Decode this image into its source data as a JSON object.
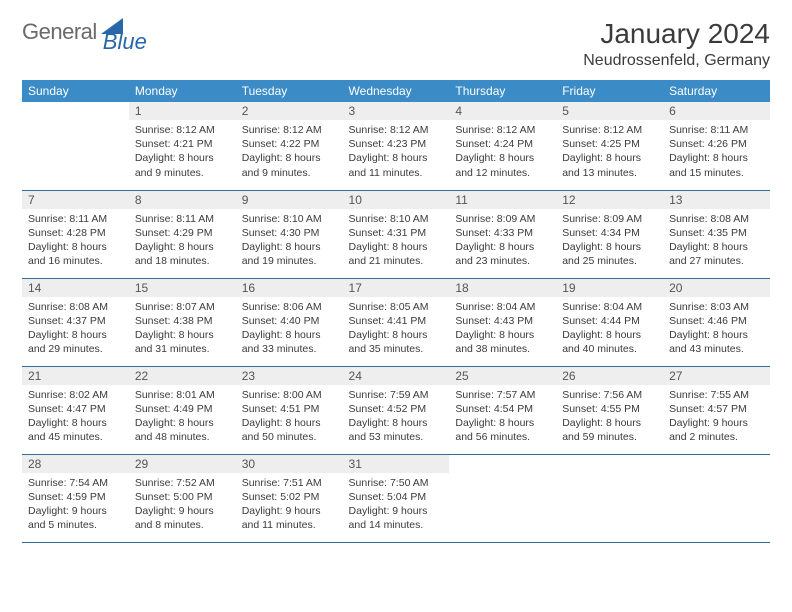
{
  "brand": {
    "word1": "General",
    "word2": "Blue"
  },
  "title": "January 2024",
  "location": "Neudrossenfeld, Germany",
  "colors": {
    "header_bg": "#3b8bc6",
    "header_text": "#ffffff",
    "row_divider": "#2f6fa0",
    "daynum_bg": "#eeeeee",
    "text": "#3b3b3b",
    "logo_gray": "#6a6a6a",
    "logo_blue": "#2868a8",
    "page_bg": "#ffffff"
  },
  "typography": {
    "title_fontsize": 28,
    "location_fontsize": 16,
    "header_fontsize": 12,
    "daynum_fontsize": 12,
    "body_fontsize": 10.5
  },
  "weekdays": [
    "Sunday",
    "Monday",
    "Tuesday",
    "Wednesday",
    "Thursday",
    "Friday",
    "Saturday"
  ],
  "weeks": [
    [
      null,
      {
        "n": "1",
        "sunrise": "8:12 AM",
        "sunset": "4:21 PM",
        "daylight": "8 hours and 9 minutes."
      },
      {
        "n": "2",
        "sunrise": "8:12 AM",
        "sunset": "4:22 PM",
        "daylight": "8 hours and 9 minutes."
      },
      {
        "n": "3",
        "sunrise": "8:12 AM",
        "sunset": "4:23 PM",
        "daylight": "8 hours and 11 minutes."
      },
      {
        "n": "4",
        "sunrise": "8:12 AM",
        "sunset": "4:24 PM",
        "daylight": "8 hours and 12 minutes."
      },
      {
        "n": "5",
        "sunrise": "8:12 AM",
        "sunset": "4:25 PM",
        "daylight": "8 hours and 13 minutes."
      },
      {
        "n": "6",
        "sunrise": "8:11 AM",
        "sunset": "4:26 PM",
        "daylight": "8 hours and 15 minutes."
      }
    ],
    [
      {
        "n": "7",
        "sunrise": "8:11 AM",
        "sunset": "4:28 PM",
        "daylight": "8 hours and 16 minutes."
      },
      {
        "n": "8",
        "sunrise": "8:11 AM",
        "sunset": "4:29 PM",
        "daylight": "8 hours and 18 minutes."
      },
      {
        "n": "9",
        "sunrise": "8:10 AM",
        "sunset": "4:30 PM",
        "daylight": "8 hours and 19 minutes."
      },
      {
        "n": "10",
        "sunrise": "8:10 AM",
        "sunset": "4:31 PM",
        "daylight": "8 hours and 21 minutes."
      },
      {
        "n": "11",
        "sunrise": "8:09 AM",
        "sunset": "4:33 PM",
        "daylight": "8 hours and 23 minutes."
      },
      {
        "n": "12",
        "sunrise": "8:09 AM",
        "sunset": "4:34 PM",
        "daylight": "8 hours and 25 minutes."
      },
      {
        "n": "13",
        "sunrise": "8:08 AM",
        "sunset": "4:35 PM",
        "daylight": "8 hours and 27 minutes."
      }
    ],
    [
      {
        "n": "14",
        "sunrise": "8:08 AM",
        "sunset": "4:37 PM",
        "daylight": "8 hours and 29 minutes."
      },
      {
        "n": "15",
        "sunrise": "8:07 AM",
        "sunset": "4:38 PM",
        "daylight": "8 hours and 31 minutes."
      },
      {
        "n": "16",
        "sunrise": "8:06 AM",
        "sunset": "4:40 PM",
        "daylight": "8 hours and 33 minutes."
      },
      {
        "n": "17",
        "sunrise": "8:05 AM",
        "sunset": "4:41 PM",
        "daylight": "8 hours and 35 minutes."
      },
      {
        "n": "18",
        "sunrise": "8:04 AM",
        "sunset": "4:43 PM",
        "daylight": "8 hours and 38 minutes."
      },
      {
        "n": "19",
        "sunrise": "8:04 AM",
        "sunset": "4:44 PM",
        "daylight": "8 hours and 40 minutes."
      },
      {
        "n": "20",
        "sunrise": "8:03 AM",
        "sunset": "4:46 PM",
        "daylight": "8 hours and 43 minutes."
      }
    ],
    [
      {
        "n": "21",
        "sunrise": "8:02 AM",
        "sunset": "4:47 PM",
        "daylight": "8 hours and 45 minutes."
      },
      {
        "n": "22",
        "sunrise": "8:01 AM",
        "sunset": "4:49 PM",
        "daylight": "8 hours and 48 minutes."
      },
      {
        "n": "23",
        "sunrise": "8:00 AM",
        "sunset": "4:51 PM",
        "daylight": "8 hours and 50 minutes."
      },
      {
        "n": "24",
        "sunrise": "7:59 AM",
        "sunset": "4:52 PM",
        "daylight": "8 hours and 53 minutes."
      },
      {
        "n": "25",
        "sunrise": "7:57 AM",
        "sunset": "4:54 PM",
        "daylight": "8 hours and 56 minutes."
      },
      {
        "n": "26",
        "sunrise": "7:56 AM",
        "sunset": "4:55 PM",
        "daylight": "8 hours and 59 minutes."
      },
      {
        "n": "27",
        "sunrise": "7:55 AM",
        "sunset": "4:57 PM",
        "daylight": "9 hours and 2 minutes."
      }
    ],
    [
      {
        "n": "28",
        "sunrise": "7:54 AM",
        "sunset": "4:59 PM",
        "daylight": "9 hours and 5 minutes."
      },
      {
        "n": "29",
        "sunrise": "7:52 AM",
        "sunset": "5:00 PM",
        "daylight": "9 hours and 8 minutes."
      },
      {
        "n": "30",
        "sunrise": "7:51 AM",
        "sunset": "5:02 PM",
        "daylight": "9 hours and 11 minutes."
      },
      {
        "n": "31",
        "sunrise": "7:50 AM",
        "sunset": "5:04 PM",
        "daylight": "9 hours and 14 minutes."
      },
      null,
      null,
      null
    ]
  ],
  "labels": {
    "sunrise": "Sunrise:",
    "sunset": "Sunset:",
    "daylight": "Daylight:"
  }
}
